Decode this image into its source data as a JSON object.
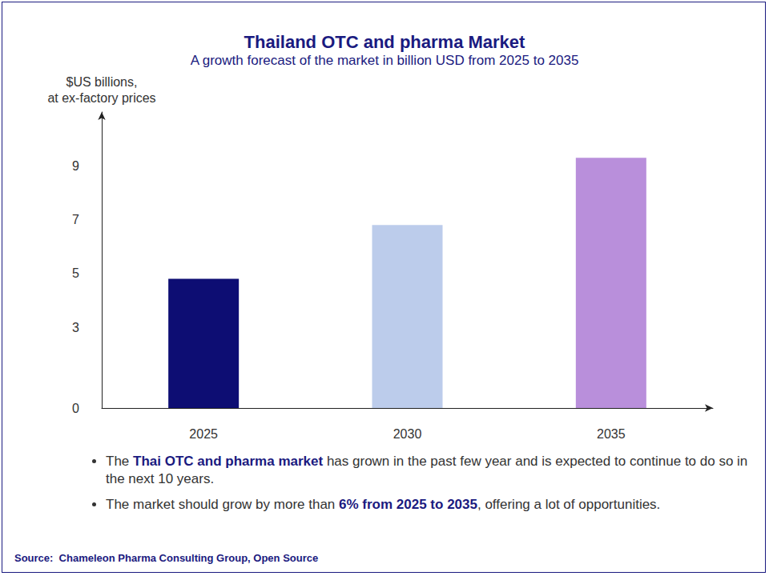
{
  "chart_data": {
    "type": "bar",
    "title": "Thailand OTC and pharma Market",
    "subtitle": "A growth forecast of the market in billion USD from 2025 to 2035",
    "y_label": "$US billions,\nat ex-factory prices",
    "categories": [
      "2025",
      "2030",
      "2035"
    ],
    "values": [
      4.8,
      6.8,
      9.3
    ],
    "colors": [
      "#0d0d73",
      "#bccceb",
      "#b98fdb"
    ],
    "ylim": [
      0,
      11
    ],
    "yticks": [
      0,
      3,
      5,
      7,
      9
    ],
    "grid": false,
    "annotations": [
      [
        "The ",
        "Thai OTC and pharma market",
        " has grown in the past few year and is expected to continue to do so in the next 10 years."
      ],
      [
        "The market should grow by more than ",
        "6% from 2025 to 2035",
        ", offering a lot of opportunities."
      ]
    ],
    "source": "Source:  Chameleon Pharma Consulting Group, Open Source"
  }
}
